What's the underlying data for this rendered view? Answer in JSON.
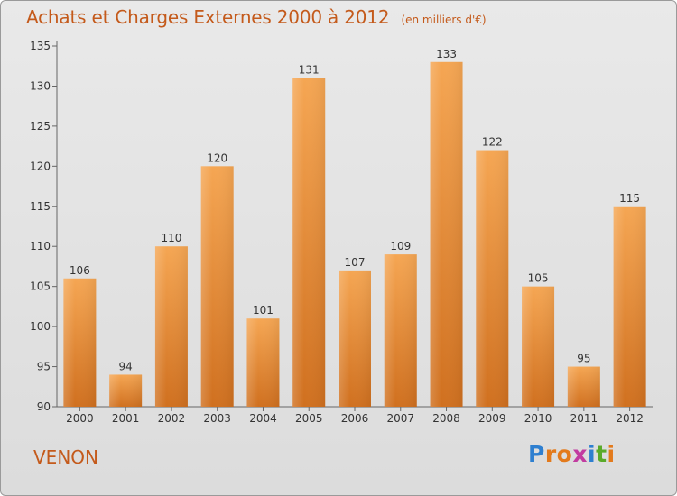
{
  "chart_data": {
    "type": "bar",
    "title": "Achats et Charges Externes 2000 à 2012",
    "subtitle": "(en milliers d'€)",
    "categories": [
      "2000",
      "2001",
      "2002",
      "2003",
      "2004",
      "2005",
      "2006",
      "2007",
      "2008",
      "2009",
      "2010",
      "2011",
      "2012"
    ],
    "values": [
      106,
      94,
      110,
      120,
      101,
      131,
      107,
      109,
      133,
      122,
      105,
      95,
      115
    ],
    "ylim": [
      90,
      135
    ],
    "yticks": [
      90,
      95,
      100,
      105,
      110,
      115,
      120,
      125,
      130,
      135
    ],
    "xlabel": "",
    "ylabel": "",
    "grid": false,
    "bar_color_top": "#f5a653",
    "bar_color_bottom": "#d0701f"
  },
  "place_name": "VENON",
  "logo": {
    "text": "Proxiti",
    "letters": [
      "P",
      "r",
      "o",
      "x",
      "i",
      "t",
      "i"
    ],
    "colors": [
      "#2e7fd0",
      "#e37a1c",
      "#e37a1c",
      "#c23ca0",
      "#2e7fd0",
      "#5aaa2a",
      "#e37a1c"
    ]
  },
  "colors": {
    "title": "#c45a1b"
  }
}
